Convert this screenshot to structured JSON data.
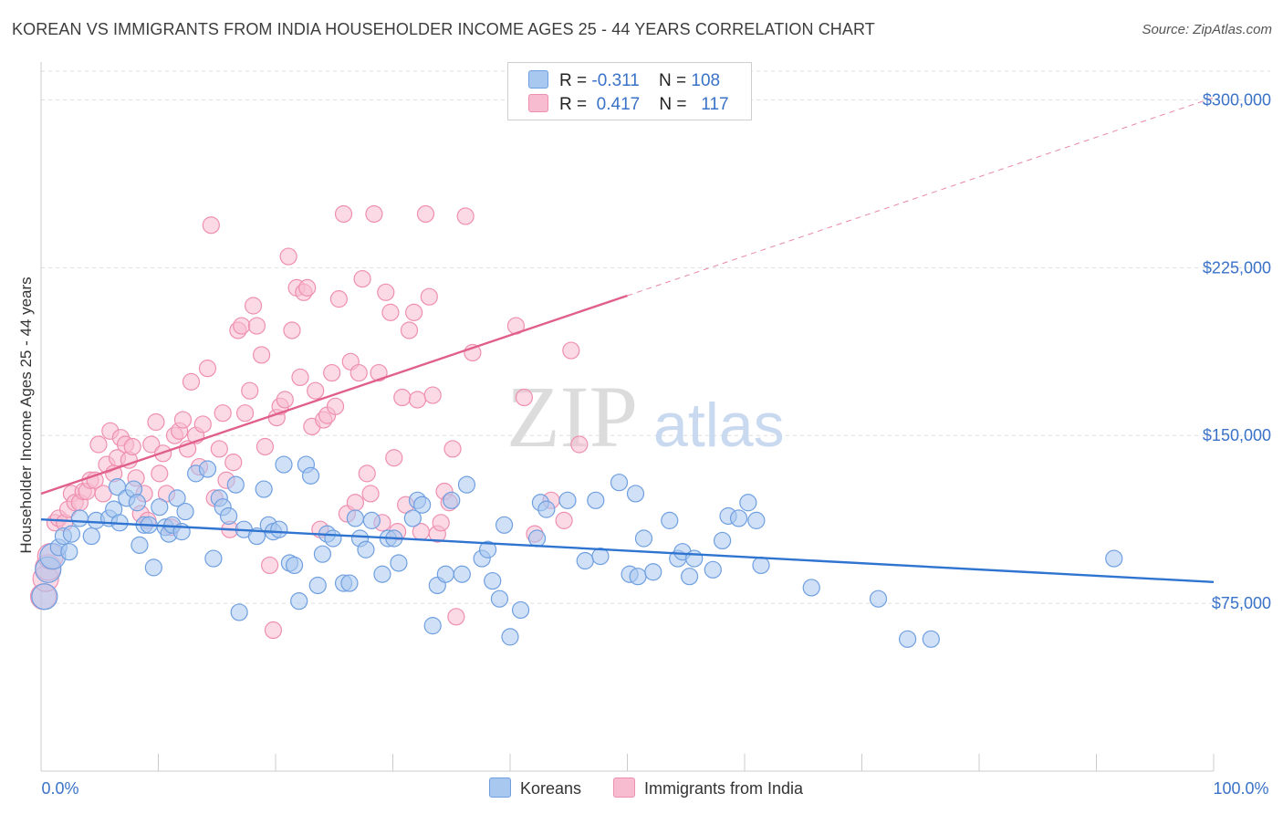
{
  "header": {
    "title": "KOREAN VS IMMIGRANTS FROM INDIA HOUSEHOLDER INCOME AGES 25 - 44 YEARS CORRELATION CHART",
    "source": "Source: ZipAtlas.com"
  },
  "stats": {
    "korean": {
      "r_label": "R =",
      "r_value": "-0.311",
      "n_label": "N =",
      "n_value": "108"
    },
    "india": {
      "r_label": "R =",
      "r_value": "0.417",
      "n_label": "N =",
      "n_value": "117"
    }
  },
  "legend": {
    "korean": "Koreans",
    "india": "Immigrants from India"
  },
  "watermark": {
    "zip": "ZIP",
    "atlas": "atlas"
  },
  "colors": {
    "korean_fill": "#a9c8f0",
    "korean_stroke": "#6f9fe0",
    "korean_line": "#2f74d0",
    "india_fill": "#f7bccf",
    "india_stroke": "#ef8fb0",
    "india_line": "#e0608a",
    "tick_label": "#3a72c8",
    "grid": "#dddddd"
  },
  "chart_data": {
    "type": "scatter",
    "xlabel": "",
    "ylabel": "Householder Income Ages 25 - 44 years",
    "xlim": [
      0,
      100
    ],
    "ylim": [
      0,
      312000
    ],
    "x_ticklabels": {
      "left": "0.0%",
      "right": "100.0%"
    },
    "y_ticks": [
      {
        "value": 75000,
        "label": "$75,000"
      },
      {
        "value": 150000,
        "label": "$150,000"
      },
      {
        "value": 225000,
        "label": "$225,000"
      },
      {
        "value": 300000,
        "label": "$300,000"
      }
    ],
    "grid": "horizontal dashed",
    "legend_position": "bottom-center",
    "series": [
      {
        "name": "Koreans",
        "r": -0.311,
        "n": 108,
        "trend": {
          "x0": 0,
          "y0": 112500,
          "x1": 100,
          "y1": 84500,
          "dashed_from": null
        },
        "points": [
          [
            0.3,
            78000
          ],
          [
            0.6,
            90000
          ],
          [
            1,
            96000
          ],
          [
            1.5,
            100000
          ],
          [
            1.9,
            105000
          ],
          [
            2.4,
            98000
          ],
          [
            2.6,
            106000
          ],
          [
            3.3,
            113000
          ],
          [
            4.3,
            105000
          ],
          [
            4.7,
            112000
          ],
          [
            5.8,
            113000
          ],
          [
            6.2,
            117000
          ],
          [
            6.5,
            127000
          ],
          [
            6.7,
            111000
          ],
          [
            7.3,
            122000
          ],
          [
            7.9,
            126000
          ],
          [
            8.2,
            120000
          ],
          [
            8.4,
            101000
          ],
          [
            8.8,
            110000
          ],
          [
            9.2,
            110000
          ],
          [
            9.6,
            91000
          ],
          [
            10.1,
            118000
          ],
          [
            10.6,
            109000
          ],
          [
            10.9,
            106000
          ],
          [
            11.2,
            110000
          ],
          [
            11.6,
            122000
          ],
          [
            12,
            107000
          ],
          [
            12.3,
            116000
          ],
          [
            13.2,
            133000
          ],
          [
            14.2,
            135000
          ],
          [
            14.7,
            95000
          ],
          [
            15.2,
            122000
          ],
          [
            15.5,
            118000
          ],
          [
            16,
            114000
          ],
          [
            16.6,
            128000
          ],
          [
            16.9,
            71000
          ],
          [
            17.3,
            108000
          ],
          [
            18.4,
            105000
          ],
          [
            19,
            126000
          ],
          [
            19.4,
            110000
          ],
          [
            19.8,
            107000
          ],
          [
            20.3,
            108000
          ],
          [
            20.7,
            137000
          ],
          [
            21.2,
            93000
          ],
          [
            21.6,
            92000
          ],
          [
            22,
            76000
          ],
          [
            22.6,
            137000
          ],
          [
            23,
            132000
          ],
          [
            23.6,
            83000
          ],
          [
            24,
            97000
          ],
          [
            24.4,
            106000
          ],
          [
            24.9,
            104000
          ],
          [
            25.8,
            84000
          ],
          [
            26.3,
            84000
          ],
          [
            26.8,
            113000
          ],
          [
            27.2,
            104000
          ],
          [
            27.7,
            99000
          ],
          [
            28.2,
            112000
          ],
          [
            29.1,
            88000
          ],
          [
            29.6,
            104000
          ],
          [
            30.1,
            104000
          ],
          [
            30.5,
            93000
          ],
          [
            31.7,
            113000
          ],
          [
            32.1,
            121000
          ],
          [
            32.5,
            119000
          ],
          [
            33.4,
            65000
          ],
          [
            33.8,
            83000
          ],
          [
            34.5,
            88000
          ],
          [
            35,
            121000
          ],
          [
            35.9,
            88000
          ],
          [
            36.3,
            128000
          ],
          [
            37.6,
            95000
          ],
          [
            38.1,
            99000
          ],
          [
            38.5,
            85000
          ],
          [
            39.1,
            77000
          ],
          [
            39.5,
            110000
          ],
          [
            40,
            60000
          ],
          [
            40.9,
            72000
          ],
          [
            42.3,
            104000
          ],
          [
            42.6,
            120000
          ],
          [
            43.1,
            117000
          ],
          [
            44.9,
            121000
          ],
          [
            46.4,
            94000
          ],
          [
            47.3,
            121000
          ],
          [
            47.7,
            96000
          ],
          [
            49.3,
            129000
          ],
          [
            50.2,
            88000
          ],
          [
            50.7,
            124000
          ],
          [
            50.9,
            87000
          ],
          [
            51.4,
            104000
          ],
          [
            52.2,
            89000
          ],
          [
            53.6,
            112000
          ],
          [
            54.3,
            95000
          ],
          [
            54.7,
            98000
          ],
          [
            55.3,
            87000
          ],
          [
            55.7,
            95000
          ],
          [
            57.3,
            90000
          ],
          [
            58.1,
            103000
          ],
          [
            58.6,
            114000
          ],
          [
            59.5,
            113000
          ],
          [
            60.3,
            120000
          ],
          [
            61,
            112000
          ],
          [
            61.4,
            92000
          ],
          [
            65.7,
            82000
          ],
          [
            71.4,
            77000
          ],
          [
            73.9,
            59000
          ],
          [
            75.9,
            59000
          ],
          [
            91.5,
            95000
          ]
        ]
      },
      {
        "name": "Immigrants from India",
        "r": 0.417,
        "n": 117,
        "trend": {
          "x0": 0,
          "y0": 124000,
          "x1": 100,
          "y1": 301000,
          "dashed_from": 50
        },
        "points": [
          [
            0.2,
            78000
          ],
          [
            0.4,
            86000
          ],
          [
            0.6,
            91000
          ],
          [
            0.8,
            96000
          ],
          [
            1.2,
            111000
          ],
          [
            1.5,
            113000
          ],
          [
            2,
            111000
          ],
          [
            2.3,
            117000
          ],
          [
            2.6,
            124000
          ],
          [
            2.9,
            120000
          ],
          [
            3.3,
            120000
          ],
          [
            3.6,
            125000
          ],
          [
            3.9,
            125000
          ],
          [
            4.2,
            130000
          ],
          [
            4.6,
            130000
          ],
          [
            4.9,
            146000
          ],
          [
            5.3,
            124000
          ],
          [
            5.6,
            137000
          ],
          [
            5.9,
            152000
          ],
          [
            6.2,
            133000
          ],
          [
            6.5,
            140000
          ],
          [
            6.8,
            149000
          ],
          [
            7.2,
            146000
          ],
          [
            7.5,
            139000
          ],
          [
            7.8,
            145000
          ],
          [
            8.1,
            131000
          ],
          [
            8.5,
            115000
          ],
          [
            8.8,
            124000
          ],
          [
            9.1,
            112000
          ],
          [
            9.4,
            146000
          ],
          [
            9.8,
            156000
          ],
          [
            10.1,
            133000
          ],
          [
            10.4,
            142000
          ],
          [
            10.7,
            124000
          ],
          [
            11.1,
            109000
          ],
          [
            11.4,
            150000
          ],
          [
            11.8,
            152000
          ],
          [
            12.1,
            157000
          ],
          [
            12.5,
            144000
          ],
          [
            12.8,
            174000
          ],
          [
            13.2,
            150000
          ],
          [
            13.5,
            136000
          ],
          [
            13.8,
            155000
          ],
          [
            14.2,
            180000
          ],
          [
            14.5,
            244000
          ],
          [
            14.8,
            122000
          ],
          [
            15.2,
            144000
          ],
          [
            15.5,
            160000
          ],
          [
            15.8,
            130000
          ],
          [
            16.1,
            108000
          ],
          [
            16.4,
            138000
          ],
          [
            16.8,
            197000
          ],
          [
            17.1,
            199000
          ],
          [
            17.4,
            160000
          ],
          [
            17.8,
            170000
          ],
          [
            18.1,
            208000
          ],
          [
            18.4,
            199000
          ],
          [
            18.8,
            186000
          ],
          [
            19.1,
            145000
          ],
          [
            19.5,
            92000
          ],
          [
            19.8,
            63000
          ],
          [
            20.1,
            158000
          ],
          [
            20.4,
            163000
          ],
          [
            20.8,
            166000
          ],
          [
            21.1,
            230000
          ],
          [
            21.4,
            197000
          ],
          [
            21.8,
            216000
          ],
          [
            22.1,
            176000
          ],
          [
            22.4,
            214000
          ],
          [
            22.7,
            216000
          ],
          [
            23.1,
            154000
          ],
          [
            23.4,
            170000
          ],
          [
            23.8,
            108000
          ],
          [
            24.1,
            157000
          ],
          [
            24.4,
            159000
          ],
          [
            24.8,
            178000
          ],
          [
            25.1,
            163000
          ],
          [
            25.4,
            211000
          ],
          [
            25.8,
            249000
          ],
          [
            26.1,
            115000
          ],
          [
            26.4,
            183000
          ],
          [
            26.8,
            120000
          ],
          [
            27.1,
            178000
          ],
          [
            27.4,
            220000
          ],
          [
            27.8,
            133000
          ],
          [
            28.1,
            124000
          ],
          [
            28.4,
            249000
          ],
          [
            28.8,
            178000
          ],
          [
            29.1,
            111000
          ],
          [
            29.4,
            214000
          ],
          [
            29.8,
            205000
          ],
          [
            30.1,
            140000
          ],
          [
            30.4,
            107000
          ],
          [
            30.8,
            167000
          ],
          [
            31.1,
            119000
          ],
          [
            31.4,
            197000
          ],
          [
            31.8,
            205000
          ],
          [
            32.1,
            166000
          ],
          [
            32.4,
            107000
          ],
          [
            32.8,
            249000
          ],
          [
            33.1,
            212000
          ],
          [
            33.4,
            168000
          ],
          [
            33.8,
            106000
          ],
          [
            34.1,
            111000
          ],
          [
            34.4,
            125000
          ],
          [
            34.8,
            120000
          ],
          [
            35.1,
            144000
          ],
          [
            35.4,
            69000
          ],
          [
            36.2,
            248000
          ],
          [
            36.8,
            187000
          ],
          [
            40.5,
            199000
          ],
          [
            41.2,
            167000
          ],
          [
            42.1,
            106000
          ],
          [
            43.5,
            121000
          ],
          [
            44.6,
            112000
          ],
          [
            45.2,
            188000
          ],
          [
            45.9,
            146000
          ]
        ]
      }
    ]
  }
}
